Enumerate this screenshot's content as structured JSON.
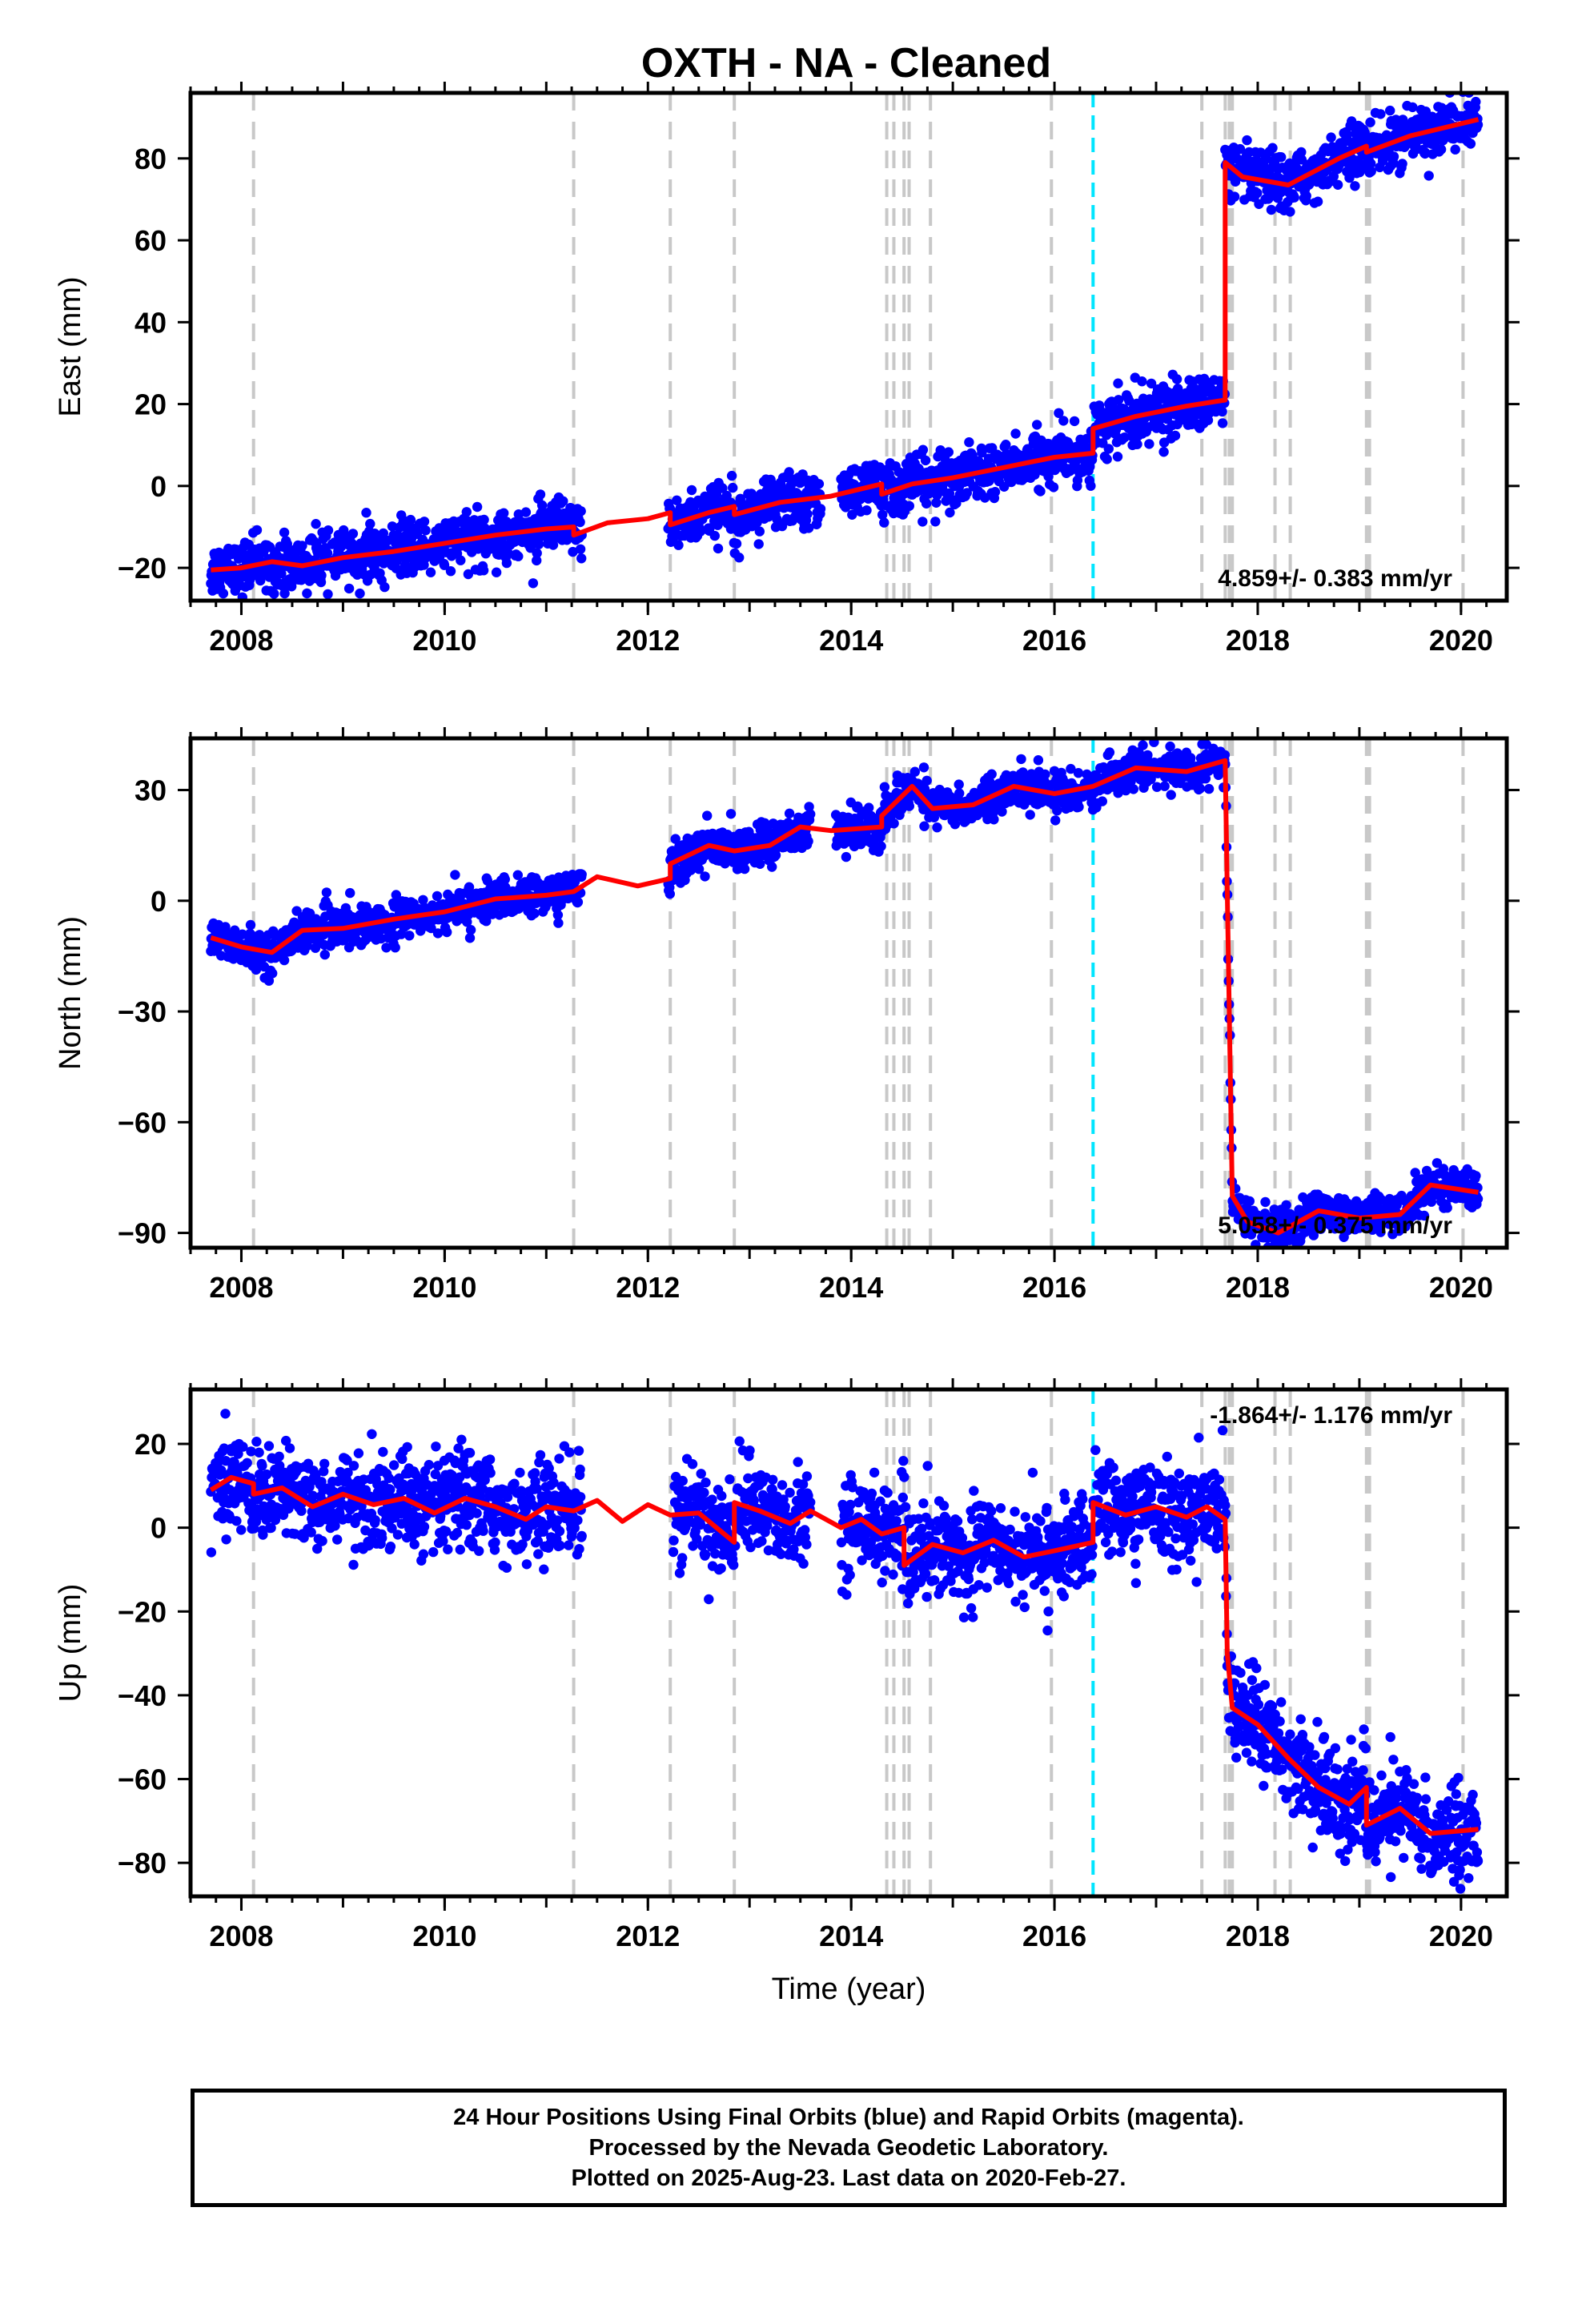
{
  "title": "OXTH  - NA - Cleaned",
  "footer": {
    "line1": "24 Hour Positions Using Final Orbits (blue) and Rapid Orbits (magenta).",
    "line2": "Processed by the Nevada Geodetic Laboratory.",
    "line3": "Plotted on 2025-Aug-23. Last data on 2020-Feb-27."
  },
  "colors": {
    "final_orbits": "#0000ff",
    "model": "#ff0000",
    "event_lines": "#c8c8c8",
    "antenna_change": "#00e5ff"
  },
  "chart_data": [
    {
      "type": "scatter",
      "name": "east",
      "ylabel": "East (mm)",
      "xlabel": "",
      "xlim": [
        2007.5,
        2020.45
      ],
      "ylim": [
        -28,
        96
      ],
      "yticks": [
        -20,
        0,
        20,
        40,
        60,
        80
      ],
      "xticks": [
        2008,
        2010,
        2012,
        2014,
        2016,
        2018,
        2020
      ],
      "rate_text": "4.859+/- 0.383 mm/yr",
      "rate_position": "bottom-right",
      "event_lines": [
        2008.12,
        2011.27,
        2012.22,
        2012.85,
        2014.35,
        2014.42,
        2014.52,
        2014.57,
        2014.78,
        2015.97,
        2017.45,
        2017.68,
        2017.72,
        2017.75,
        2018.17,
        2018.32,
        2019.07,
        2019.1,
        2020.02
      ],
      "antenna_change": 2016.38,
      "data_ranges": [
        [
          2007.7,
          2011.35
        ],
        [
          2012.2,
          2013.7
        ],
        [
          2013.9,
          2020.17
        ]
      ],
      "series": [
        {
          "name": "model",
          "x": [
            2007.7,
            2008.0,
            2008.3,
            2008.6,
            2009.0,
            2009.5,
            2010.0,
            2010.5,
            2011.0,
            2011.27,
            2011.27,
            2011.6,
            2012.0,
            2012.22,
            2012.22,
            2012.6,
            2012.85,
            2012.85,
            2013.3,
            2013.8,
            2014.3,
            2014.3,
            2014.6,
            2015.0,
            2015.5,
            2016.0,
            2016.38,
            2016.38,
            2016.8,
            2017.3,
            2017.68,
            2017.68,
            2017.85,
            2018.3,
            2018.8,
            2019.07,
            2019.07,
            2019.5,
            2020.17
          ],
          "y": [
            -20.5,
            -20.0,
            -18.5,
            -19.5,
            -17.5,
            -16.0,
            -14.0,
            -12.0,
            -10.5,
            -10.0,
            -12.0,
            -9.0,
            -8.0,
            -6.5,
            -9.5,
            -6.5,
            -5.0,
            -7.0,
            -4.0,
            -2.5,
            0.5,
            -2.0,
            0.5,
            2.0,
            4.5,
            7.0,
            8.0,
            14.0,
            17.0,
            19.5,
            21.0,
            79.0,
            75.5,
            73.5,
            80.0,
            83.0,
            81.5,
            85.5,
            89.5
          ]
        },
        {
          "name": "data_noise",
          "values": [
            3.2
          ]
        }
      ]
    },
    {
      "type": "scatter",
      "name": "north",
      "ylabel": "North (mm)",
      "xlabel": "",
      "xlim": [
        2007.5,
        2020.45
      ],
      "ylim": [
        -94,
        44
      ],
      "yticks": [
        -90,
        -60,
        -30,
        0,
        30
      ],
      "xticks": [
        2008,
        2010,
        2012,
        2014,
        2016,
        2018,
        2020
      ],
      "rate_text": "5.058+/- 0.375 mm/yr",
      "rate_position": "bottom-right",
      "event_lines": [
        2008.12,
        2011.27,
        2012.22,
        2012.85,
        2014.35,
        2014.42,
        2014.52,
        2014.57,
        2014.78,
        2015.97,
        2017.45,
        2017.68,
        2017.72,
        2017.75,
        2018.17,
        2018.32,
        2019.07,
        2019.1,
        2020.02
      ],
      "antenna_change": 2016.38,
      "data_ranges": [
        [
          2007.7,
          2011.35
        ],
        [
          2012.2,
          2013.6
        ],
        [
          2013.85,
          2020.17
        ]
      ],
      "series": [
        {
          "name": "model",
          "x": [
            2007.7,
            2008.0,
            2008.3,
            2008.6,
            2009.0,
            2009.5,
            2010.0,
            2010.5,
            2011.0,
            2011.27,
            2011.5,
            2011.9,
            2012.22,
            2012.22,
            2012.6,
            2012.85,
            2013.2,
            2013.5,
            2013.8,
            2014.3,
            2014.3,
            2014.6,
            2014.8,
            2015.2,
            2015.6,
            2016.0,
            2016.38,
            2016.8,
            2017.3,
            2017.68,
            2017.69,
            2017.75,
            2017.9,
            2018.2,
            2018.6,
            2019.0,
            2019.4,
            2019.7,
            2020.17
          ],
          "y": [
            -10.0,
            -12.5,
            -14.0,
            -8.0,
            -7.5,
            -5.0,
            -3.0,
            0.5,
            1.5,
            2.5,
            6.5,
            4.0,
            6.0,
            10.0,
            15.0,
            13.5,
            15.0,
            20.0,
            19.0,
            20.0,
            23.0,
            31.0,
            25.0,
            26.0,
            31.0,
            29.0,
            31.0,
            36.0,
            35.0,
            38.0,
            20.0,
            -80.0,
            -87.0,
            -90.0,
            -84.0,
            -86.0,
            -85.0,
            -77.0,
            -79.0
          ]
        },
        {
          "name": "data_noise",
          "values": [
            2.6
          ]
        }
      ]
    },
    {
      "type": "scatter",
      "name": "up",
      "ylabel": "Up (mm)",
      "xlabel": "Time (year)",
      "xlim": [
        2007.5,
        2020.45
      ],
      "ylim": [
        -88,
        33
      ],
      "yticks": [
        -80,
        -60,
        -40,
        -20,
        0,
        20
      ],
      "xticks": [
        2008,
        2010,
        2012,
        2014,
        2016,
        2018,
        2020
      ],
      "rate_text": "-1.864+/- 1.176 mm/yr",
      "rate_position": "top-right",
      "event_lines": [
        2008.12,
        2011.27,
        2012.22,
        2012.85,
        2014.35,
        2014.42,
        2014.52,
        2014.57,
        2014.78,
        2015.97,
        2017.45,
        2017.68,
        2017.72,
        2017.75,
        2018.17,
        2018.32,
        2019.07,
        2019.1,
        2020.02
      ],
      "antenna_change": 2016.38,
      "data_ranges": [
        [
          2007.7,
          2011.35
        ],
        [
          2012.25,
          2013.6
        ],
        [
          2013.9,
          2020.17
        ]
      ],
      "series": [
        {
          "name": "model",
          "x": [
            2007.7,
            2007.9,
            2008.12,
            2008.12,
            2008.4,
            2008.7,
            2009.0,
            2009.3,
            2009.6,
            2009.9,
            2010.2,
            2010.5,
            2010.8,
            2011.0,
            2011.27,
            2011.5,
            2011.75,
            2012.0,
            2012.22,
            2012.5,
            2012.85,
            2012.85,
            2013.1,
            2013.4,
            2013.6,
            2013.9,
            2014.1,
            2014.3,
            2014.52,
            2014.52,
            2014.8,
            2015.1,
            2015.4,
            2015.7,
            2016.0,
            2016.38,
            2016.38,
            2016.7,
            2017.0,
            2017.3,
            2017.5,
            2017.68,
            2017.7,
            2017.75,
            2018.0,
            2018.3,
            2018.6,
            2018.9,
            2019.07,
            2019.07,
            2019.4,
            2019.7,
            2020.17
          ],
          "y": [
            9.0,
            12.0,
            10.5,
            8.0,
            9.5,
            5.0,
            8.0,
            5.5,
            7.0,
            3.5,
            7.0,
            5.0,
            2.0,
            5.0,
            4.0,
            6.5,
            1.5,
            5.5,
            3.0,
            3.5,
            -3.5,
            6.0,
            4.0,
            1.0,
            4.0,
            0.0,
            2.0,
            -1.5,
            0.0,
            -9.0,
            -4.0,
            -6.0,
            -3.0,
            -7.0,
            -5.5,
            -3.5,
            6.0,
            3.0,
            5.0,
            2.5,
            5.0,
            2.0,
            -30.0,
            -43.0,
            -47.0,
            -55.0,
            -62.0,
            -66.0,
            -62.0,
            -71.0,
            -67.0,
            -73.0,
            -72.0
          ]
        },
        {
          "name": "data_noise",
          "values": [
            5.5
          ]
        }
      ]
    }
  ]
}
